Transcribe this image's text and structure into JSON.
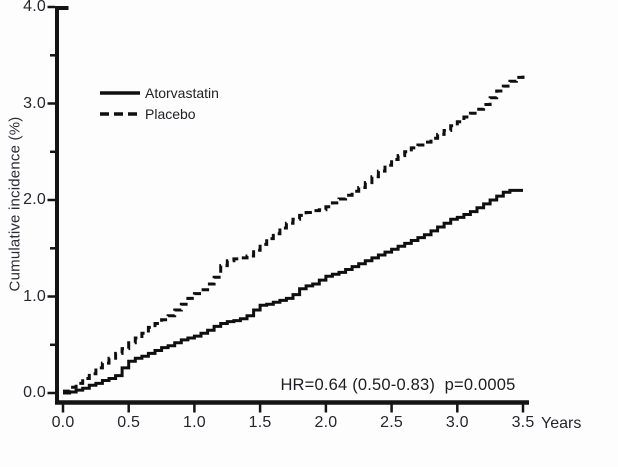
{
  "figure": {
    "background": "#fdfdfd",
    "ink_color": "#141414",
    "text_color": "#26262b"
  },
  "legend": {
    "items": [
      {
        "label": "Atorvastatin",
        "style": "solid"
      },
      {
        "label": "Placebo",
        "style": "dashed"
      }
    ]
  },
  "annotation": {
    "text": "HR=0.64 (0.50-0.83)  p=0.0005"
  },
  "chart_data": {
    "type": "line",
    "subtype": "kaplan-meier-cumulative-incidence-steps",
    "title": "",
    "xlabel": "Years",
    "ylabel": "Cumulative incidence (%)",
    "xlim": [
      0,
      3.5
    ],
    "ylim": [
      0,
      4.0
    ],
    "grid": false,
    "legend_position": "upper-left-inside",
    "x_ticks": {
      "values": [
        0,
        0.5,
        1.0,
        1.5,
        2.0,
        2.5,
        3.0,
        3.5
      ],
      "labels": [
        "0.0",
        "0.5",
        "1.0",
        "1.5",
        "2.0",
        "2.5",
        "3.0",
        "3.5"
      ]
    },
    "y_ticks": {
      "values": [
        0,
        1.0,
        2.0,
        3.0,
        4.0
      ],
      "labels": [
        "0.0",
        "1.0",
        "2.0",
        "3.0",
        "4.0"
      ]
    },
    "y_ticks_minor": [
      0.5,
      1.5,
      2.5,
      3.5
    ],
    "series": [
      {
        "name": "Atorvastatin",
        "line": "solid",
        "color": "#0f0f0f",
        "points": [
          [
            0.0,
            0.0
          ],
          [
            0.05,
            0.01
          ],
          [
            0.1,
            0.03
          ],
          [
            0.15,
            0.05
          ],
          [
            0.2,
            0.08
          ],
          [
            0.25,
            0.1
          ],
          [
            0.3,
            0.13
          ],
          [
            0.35,
            0.15
          ],
          [
            0.4,
            0.18
          ],
          [
            0.45,
            0.26
          ],
          [
            0.5,
            0.33
          ],
          [
            0.55,
            0.36
          ],
          [
            0.6,
            0.38
          ],
          [
            0.65,
            0.41
          ],
          [
            0.7,
            0.44
          ],
          [
            0.75,
            0.47
          ],
          [
            0.8,
            0.49
          ],
          [
            0.85,
            0.52
          ],
          [
            0.9,
            0.55
          ],
          [
            0.95,
            0.57
          ],
          [
            1.0,
            0.59
          ],
          [
            1.05,
            0.62
          ],
          [
            1.1,
            0.65
          ],
          [
            1.15,
            0.69
          ],
          [
            1.2,
            0.72
          ],
          [
            1.25,
            0.74
          ],
          [
            1.3,
            0.75
          ],
          [
            1.35,
            0.77
          ],
          [
            1.4,
            0.8
          ],
          [
            1.45,
            0.86
          ],
          [
            1.5,
            0.91
          ],
          [
            1.55,
            0.92
          ],
          [
            1.6,
            0.94
          ],
          [
            1.65,
            0.96
          ],
          [
            1.7,
            0.98
          ],
          [
            1.75,
            1.02
          ],
          [
            1.8,
            1.08
          ],
          [
            1.85,
            1.11
          ],
          [
            1.9,
            1.13
          ],
          [
            1.95,
            1.17
          ],
          [
            2.0,
            1.21
          ],
          [
            2.05,
            1.23
          ],
          [
            2.1,
            1.25
          ],
          [
            2.15,
            1.28
          ],
          [
            2.2,
            1.31
          ],
          [
            2.25,
            1.34
          ],
          [
            2.3,
            1.37
          ],
          [
            2.35,
            1.4
          ],
          [
            2.4,
            1.43
          ],
          [
            2.45,
            1.46
          ],
          [
            2.5,
            1.49
          ],
          [
            2.55,
            1.52
          ],
          [
            2.6,
            1.55
          ],
          [
            2.65,
            1.58
          ],
          [
            2.7,
            1.61
          ],
          [
            2.75,
            1.64
          ],
          [
            2.8,
            1.68
          ],
          [
            2.85,
            1.72
          ],
          [
            2.9,
            1.76
          ],
          [
            2.95,
            1.8
          ],
          [
            3.0,
            1.82
          ],
          [
            3.05,
            1.85
          ],
          [
            3.1,
            1.88
          ],
          [
            3.15,
            1.92
          ],
          [
            3.2,
            1.96
          ],
          [
            3.25,
            2.0
          ],
          [
            3.3,
            2.04
          ],
          [
            3.35,
            2.08
          ],
          [
            3.4,
            2.1
          ],
          [
            3.5,
            2.1
          ]
        ]
      },
      {
        "name": "Placebo",
        "line": "dashed",
        "color": "#0f0f0f",
        "points": [
          [
            0.0,
            0.02
          ],
          [
            0.05,
            0.06
          ],
          [
            0.1,
            0.1
          ],
          [
            0.15,
            0.15
          ],
          [
            0.2,
            0.2
          ],
          [
            0.25,
            0.26
          ],
          [
            0.3,
            0.31
          ],
          [
            0.35,
            0.36
          ],
          [
            0.4,
            0.41
          ],
          [
            0.45,
            0.46
          ],
          [
            0.5,
            0.52
          ],
          [
            0.55,
            0.57
          ],
          [
            0.6,
            0.62
          ],
          [
            0.65,
            0.68
          ],
          [
            0.7,
            0.72
          ],
          [
            0.75,
            0.76
          ],
          [
            0.8,
            0.8
          ],
          [
            0.85,
            0.86
          ],
          [
            0.9,
            0.92
          ],
          [
            0.95,
            0.98
          ],
          [
            1.0,
            1.03
          ],
          [
            1.05,
            1.07
          ],
          [
            1.1,
            1.13
          ],
          [
            1.15,
            1.2
          ],
          [
            1.2,
            1.32
          ],
          [
            1.25,
            1.37
          ],
          [
            1.3,
            1.39
          ],
          [
            1.35,
            1.4
          ],
          [
            1.4,
            1.42
          ],
          [
            1.45,
            1.48
          ],
          [
            1.5,
            1.54
          ],
          [
            1.55,
            1.6
          ],
          [
            1.6,
            1.65
          ],
          [
            1.65,
            1.71
          ],
          [
            1.7,
            1.76
          ],
          [
            1.75,
            1.8
          ],
          [
            1.8,
            1.84
          ],
          [
            1.85,
            1.87
          ],
          [
            1.9,
            1.89
          ],
          [
            1.95,
            1.9
          ],
          [
            2.0,
            1.93
          ],
          [
            2.05,
            1.97
          ],
          [
            2.1,
            2.01
          ],
          [
            2.15,
            2.05
          ],
          [
            2.2,
            2.09
          ],
          [
            2.25,
            2.13
          ],
          [
            2.3,
            2.18
          ],
          [
            2.35,
            2.24
          ],
          [
            2.4,
            2.3
          ],
          [
            2.45,
            2.36
          ],
          [
            2.5,
            2.42
          ],
          [
            2.55,
            2.46
          ],
          [
            2.6,
            2.5
          ],
          [
            2.65,
            2.54
          ],
          [
            2.7,
            2.57
          ],
          [
            2.75,
            2.6
          ],
          [
            2.8,
            2.64
          ],
          [
            2.85,
            2.68
          ],
          [
            2.9,
            2.72
          ],
          [
            2.95,
            2.77
          ],
          [
            3.0,
            2.81
          ],
          [
            3.05,
            2.86
          ],
          [
            3.1,
            2.9
          ],
          [
            3.15,
            2.94
          ],
          [
            3.2,
            2.99
          ],
          [
            3.25,
            3.06
          ],
          [
            3.3,
            3.13
          ],
          [
            3.35,
            3.18
          ],
          [
            3.4,
            3.23
          ],
          [
            3.45,
            3.27
          ],
          [
            3.5,
            3.33
          ]
        ]
      }
    ]
  }
}
